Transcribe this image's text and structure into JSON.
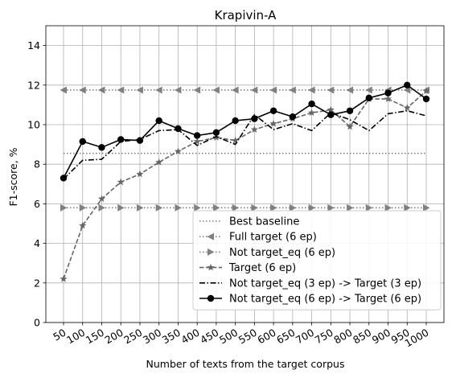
{
  "chart_data": {
    "type": "line",
    "title": "Krapivin-A",
    "xlabel": "Number of texts from the target corpus",
    "ylabel": "F1-score, %",
    "ylim": [
      0,
      15
    ],
    "yticks": [
      0,
      2,
      4,
      6,
      8,
      10,
      12,
      14
    ],
    "categories": [
      "50",
      "100",
      "150",
      "200",
      "250",
      "300",
      "350",
      "400",
      "450",
      "500",
      "550",
      "600",
      "650",
      "700",
      "750",
      "800",
      "850",
      "900",
      "950",
      "1000"
    ],
    "grid": true,
    "legend_position": "lower-right",
    "series": [
      {
        "name": "Best baseline",
        "style": "dotted",
        "marker": "none",
        "color": "#808080",
        "values": [
          8.55,
          8.55,
          8.55,
          8.55,
          8.55,
          8.55,
          8.55,
          8.55,
          8.55,
          8.55,
          8.55,
          8.55,
          8.55,
          8.55,
          8.55,
          8.55,
          8.55,
          8.55,
          8.55,
          8.55
        ]
      },
      {
        "name": "Full target (6 ep)",
        "style": "dotted",
        "marker": "triangle-left",
        "color": "#808080",
        "values": [
          11.75,
          11.75,
          11.75,
          11.75,
          11.75,
          11.75,
          11.75,
          11.75,
          11.75,
          11.75,
          11.75,
          11.75,
          11.75,
          11.75,
          11.75,
          11.75,
          11.75,
          11.75,
          11.75,
          11.75
        ]
      },
      {
        "name": "Not target_eq (6 ep)",
        "style": "dotted",
        "marker": "triangle-right",
        "color": "#808080",
        "values": [
          5.8,
          5.8,
          5.8,
          5.8,
          5.8,
          5.8,
          5.8,
          5.8,
          5.8,
          5.8,
          5.8,
          5.8,
          5.8,
          5.8,
          5.8,
          5.8,
          5.8,
          5.8,
          5.8,
          5.8
        ]
      },
      {
        "name": "Target (6 ep)",
        "style": "dashed",
        "marker": "star",
        "color": "#666666",
        "values": [
          2.2,
          4.9,
          6.25,
          7.1,
          7.5,
          8.1,
          8.65,
          9.15,
          9.35,
          9.2,
          9.75,
          10.05,
          10.3,
          10.6,
          10.75,
          9.9,
          11.3,
          11.3,
          10.85,
          11.7
        ]
      },
      {
        "name": "Not target_eq (3 ep) -> Target (3 ep)",
        "style": "dashdot",
        "marker": "none",
        "color": "#000000",
        "values": [
          7.25,
          8.2,
          8.25,
          9.15,
          9.25,
          9.7,
          9.75,
          8.95,
          9.4,
          9.0,
          10.5,
          9.75,
          10.05,
          9.7,
          10.6,
          10.25,
          9.7,
          10.55,
          10.7,
          10.45
        ]
      },
      {
        "name": "Not target_eq (6 ep) -> Target (6 ep)",
        "style": "solid",
        "marker": "circle",
        "color": "#000000",
        "values": [
          7.3,
          9.15,
          8.85,
          9.25,
          9.2,
          10.2,
          9.8,
          9.45,
          9.6,
          10.2,
          10.3,
          10.7,
          10.4,
          11.05,
          10.5,
          10.7,
          11.35,
          11.6,
          12.0,
          11.3
        ]
      }
    ]
  }
}
